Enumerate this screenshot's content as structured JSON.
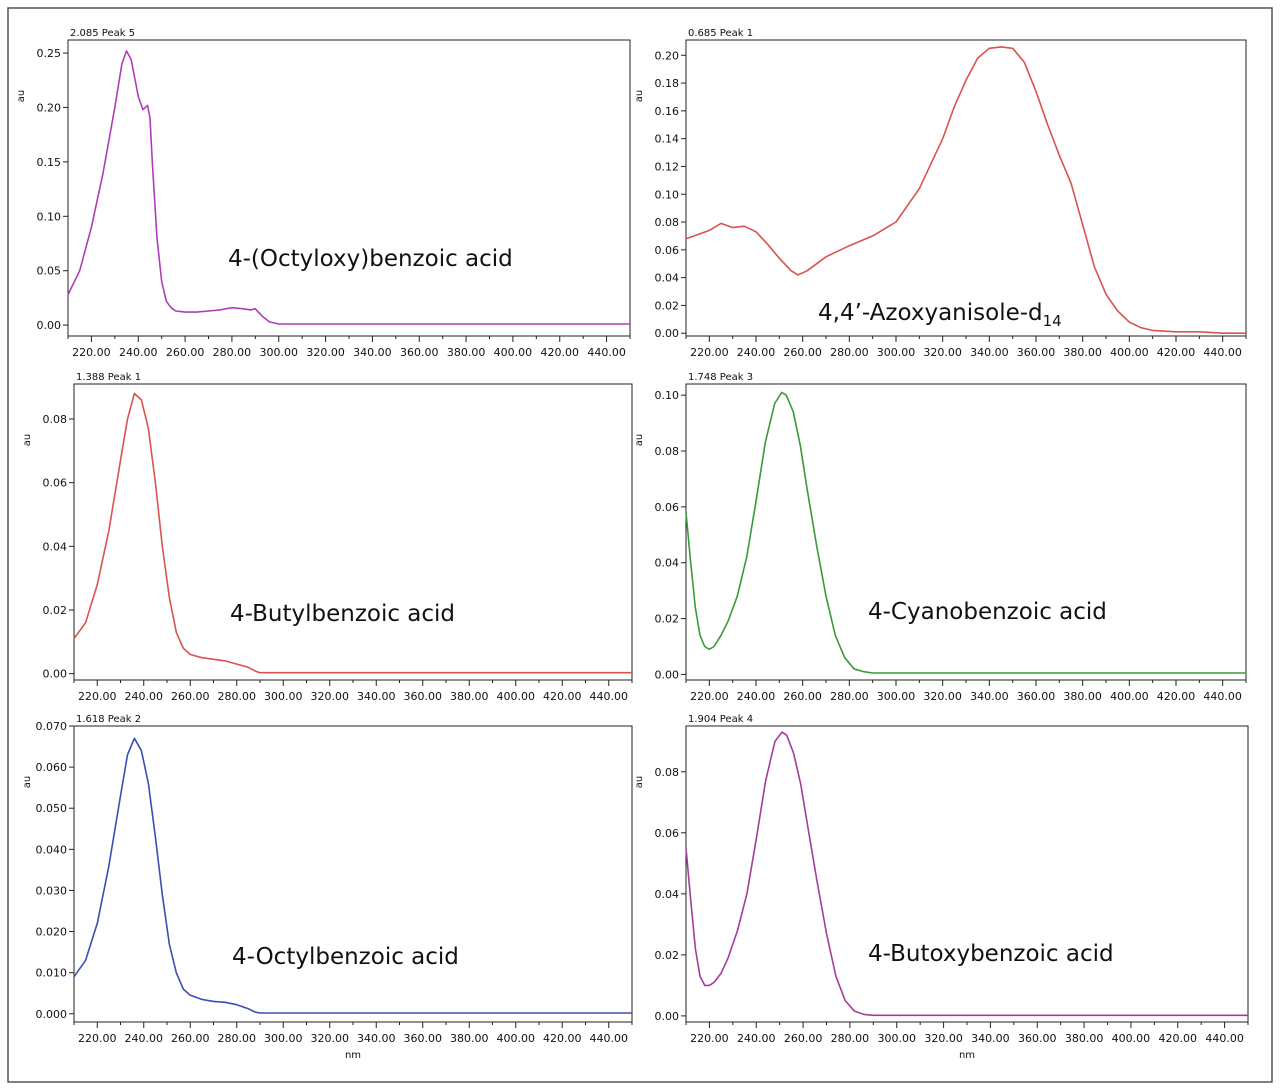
{
  "chart_data": [
    {
      "type": "line",
      "title": "2.085 Peak 5",
      "ylabel": "au",
      "xlabel": "",
      "annotation": {
        "text": "4-(Octyloxy)benzoic acid",
        "sub": ""
      },
      "xlim": [
        210,
        450
      ],
      "ylim": [
        -0.01,
        0.262
      ],
      "x_ticks": [
        "220.00",
        "240.00",
        "260.00",
        "280.00",
        "300.00",
        "320.00",
        "340.00",
        "360.00",
        "380.00",
        "400.00",
        "420.00",
        "440.00"
      ],
      "y_ticks": [
        "0.00",
        "0.05",
        "0.10",
        "0.15",
        "0.20",
        "0.25"
      ],
      "series": [
        {
          "color": "#b03db8",
          "x": [
            210,
            215,
            220,
            225,
            230,
            233,
            235,
            237,
            240,
            242,
            244,
            245,
            246,
            248,
            250,
            252,
            254,
            256,
            260,
            265,
            270,
            275,
            280,
            285,
            288,
            290,
            293,
            296,
            300,
            320,
            360,
            400,
            450
          ],
          "y": [
            0.028,
            0.05,
            0.09,
            0.14,
            0.2,
            0.24,
            0.252,
            0.244,
            0.21,
            0.198,
            0.202,
            0.19,
            0.15,
            0.08,
            0.04,
            0.022,
            0.016,
            0.013,
            0.012,
            0.012,
            0.013,
            0.014,
            0.016,
            0.015,
            0.014,
            0.015,
            0.008,
            0.003,
            0.001,
            0.001,
            0.001,
            0.001,
            0.001
          ]
        }
      ]
    },
    {
      "type": "line",
      "title": "0.685 Peak 1",
      "ylabel": "au",
      "xlabel": "",
      "annotation": {
        "text": "4,4’-Azoxyanisole-d",
        "sub": "14"
      },
      "xlim": [
        210,
        450
      ],
      "ylim": [
        -0.002,
        0.211
      ],
      "x_ticks": [
        "220.00",
        "240.00",
        "260.00",
        "280.00",
        "300.00",
        "320.00",
        "340.00",
        "360.00",
        "380.00",
        "400.00",
        "420.00",
        "440.00"
      ],
      "y_ticks": [
        "0.00",
        "0.02",
        "0.04",
        "0.06",
        "0.08",
        "0.10",
        "0.12",
        "0.14",
        "0.16",
        "0.18",
        "0.20"
      ],
      "series": [
        {
          "color": "#d9534f",
          "x": [
            210,
            215,
            220,
            225,
            230,
            235,
            240,
            245,
            250,
            255,
            258,
            262,
            266,
            270,
            280,
            290,
            300,
            310,
            320,
            325,
            330,
            335,
            340,
            345,
            350,
            355,
            360,
            365,
            370,
            375,
            380,
            385,
            390,
            395,
            400,
            405,
            410,
            420,
            430,
            440,
            450
          ],
          "y": [
            0.068,
            0.071,
            0.074,
            0.079,
            0.076,
            0.077,
            0.073,
            0.064,
            0.054,
            0.045,
            0.042,
            0.045,
            0.05,
            0.055,
            0.063,
            0.07,
            0.08,
            0.104,
            0.14,
            0.163,
            0.182,
            0.198,
            0.205,
            0.206,
            0.205,
            0.195,
            0.174,
            0.15,
            0.128,
            0.108,
            0.078,
            0.048,
            0.028,
            0.016,
            0.008,
            0.004,
            0.002,
            0.001,
            0.001,
            0.0,
            0.0
          ]
        }
      ]
    },
    {
      "type": "line",
      "title": "1.388 Peak 1",
      "ylabel": "au",
      "xlabel": "",
      "annotation": {
        "text": "4-Butylbenzoic acid",
        "sub": ""
      },
      "xlim": [
        210,
        450
      ],
      "ylim": [
        -0.002,
        0.091
      ],
      "x_ticks": [
        "220.00",
        "240.00",
        "260.00",
        "280.00",
        "300.00",
        "320.00",
        "340.00",
        "360.00",
        "380.00",
        "400.00",
        "420.00",
        "440.00"
      ],
      "y_ticks": [
        "0.00",
        "0.02",
        "0.04",
        "0.06",
        "0.08"
      ],
      "series": [
        {
          "color": "#d9534f",
          "x": [
            210,
            215,
            220,
            225,
            230,
            233,
            236,
            239,
            242,
            245,
            248,
            251,
            254,
            257,
            260,
            265,
            270,
            275,
            280,
            285,
            288,
            290,
            300,
            320,
            360,
            400,
            450
          ],
          "y": [
            0.011,
            0.016,
            0.028,
            0.045,
            0.067,
            0.08,
            0.088,
            0.086,
            0.077,
            0.06,
            0.04,
            0.024,
            0.013,
            0.008,
            0.006,
            0.005,
            0.0045,
            0.004,
            0.003,
            0.002,
            0.0008,
            0.0003,
            0.0003,
            0.0003,
            0.0003,
            0.0003,
            0.0003
          ]
        }
      ]
    },
    {
      "type": "line",
      "title": "1.748 Peak 3",
      "ylabel": "au",
      "xlabel": "",
      "annotation": {
        "text": "4-Cyanobenzoic acid",
        "sub": ""
      },
      "xlim": [
        210,
        450
      ],
      "ylim": [
        -0.002,
        0.104
      ],
      "x_ticks": [
        "220.00",
        "240.00",
        "260.00",
        "280.00",
        "300.00",
        "320.00",
        "340.00",
        "360.00",
        "380.00",
        "400.00",
        "420.00",
        "440.00"
      ],
      "y_ticks": [
        "0.00",
        "0.02",
        "0.04",
        "0.06",
        "0.08",
        "0.10"
      ],
      "series": [
        {
          "color": "#3a9a3a",
          "x": [
            210,
            212,
            214,
            216,
            218,
            220,
            222,
            225,
            228,
            232,
            236,
            240,
            244,
            248,
            251,
            253,
            256,
            259,
            262,
            266,
            270,
            274,
            278,
            282,
            286,
            290,
            300,
            320,
            360,
            400,
            450
          ],
          "y": [
            0.058,
            0.04,
            0.024,
            0.014,
            0.01,
            0.009,
            0.01,
            0.014,
            0.019,
            0.028,
            0.042,
            0.062,
            0.083,
            0.097,
            0.101,
            0.1,
            0.094,
            0.082,
            0.066,
            0.046,
            0.028,
            0.014,
            0.006,
            0.002,
            0.001,
            0.0005,
            0.0005,
            0.0005,
            0.0005,
            0.0005,
            0.0005
          ]
        }
      ]
    },
    {
      "type": "line",
      "title": "1.618 Peak 2",
      "ylabel": "au",
      "xlabel": "nm",
      "annotation": {
        "text": "4-Octylbenzoic acid",
        "sub": ""
      },
      "xlim": [
        210,
        450
      ],
      "ylim": [
        -0.002,
        0.07
      ],
      "x_ticks": [
        "220.00",
        "240.00",
        "260.00",
        "280.00",
        "300.00",
        "320.00",
        "340.00",
        "360.00",
        "380.00",
        "400.00",
        "420.00",
        "440.00"
      ],
      "y_ticks": [
        "0.000",
        "0.010",
        "0.020",
        "0.030",
        "0.040",
        "0.050",
        "0.060",
        "0.070"
      ],
      "series": [
        {
          "color": "#3b4fb0",
          "x": [
            210,
            215,
            220,
            225,
            230,
            233,
            236,
            239,
            242,
            245,
            248,
            251,
            254,
            257,
            260,
            265,
            270,
            275,
            280,
            285,
            288,
            290,
            300,
            320,
            360,
            400,
            450
          ],
          "y": [
            0.009,
            0.013,
            0.022,
            0.036,
            0.053,
            0.063,
            0.067,
            0.064,
            0.056,
            0.043,
            0.029,
            0.017,
            0.01,
            0.006,
            0.0045,
            0.0035,
            0.003,
            0.0028,
            0.0022,
            0.0012,
            0.0004,
            0.0002,
            0.0002,
            0.0002,
            0.0002,
            0.0002,
            0.0002
          ]
        }
      ]
    },
    {
      "type": "line",
      "title": "1.904 Peak 4",
      "ylabel": "au",
      "xlabel": "nm",
      "annotation": {
        "text": "4-Butoxybenzoic acid",
        "sub": ""
      },
      "xlim": [
        210,
        450
      ],
      "ylim": [
        -0.002,
        0.095
      ],
      "x_ticks": [
        "220.00",
        "240.00",
        "260.00",
        "280.00",
        "300.00",
        "320.00",
        "340.00",
        "360.00",
        "380.00",
        "400.00",
        "420.00",
        "440.00"
      ],
      "y_ticks": [
        "0.00",
        "0.02",
        "0.04",
        "0.06",
        "0.08"
      ],
      "series": [
        {
          "color": "#a43c9a",
          "x": [
            210,
            212,
            214,
            216,
            218,
            220,
            222,
            225,
            228,
            232,
            236,
            240,
            244,
            248,
            251,
            253,
            256,
            259,
            262,
            266,
            270,
            274,
            278,
            282,
            286,
            290,
            300,
            320,
            360,
            400,
            450
          ],
          "y": [
            0.055,
            0.038,
            0.022,
            0.013,
            0.01,
            0.01,
            0.011,
            0.014,
            0.019,
            0.028,
            0.04,
            0.058,
            0.077,
            0.09,
            0.093,
            0.092,
            0.086,
            0.076,
            0.062,
            0.044,
            0.027,
            0.013,
            0.005,
            0.0015,
            0.0005,
            0.0002,
            0.0002,
            0.0002,
            0.0002,
            0.0002,
            0.0002
          ]
        }
      ]
    }
  ]
}
